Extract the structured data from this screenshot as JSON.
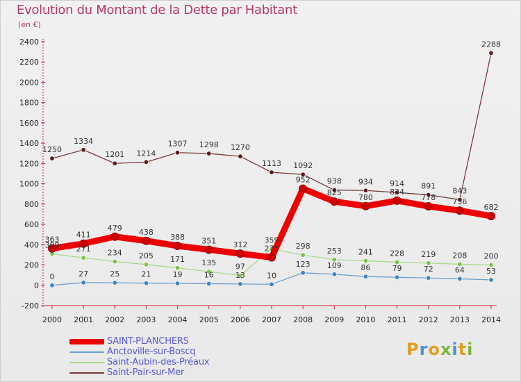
{
  "header": {
    "title": "Evolution du Montant de la Dette par Habitant",
    "subtitle": "(en €)"
  },
  "brand": "Proxiti",
  "chart_data": {
    "type": "line",
    "title": "Evolution du Montant de la Dette par Habitant",
    "subtitle": "(en €)",
    "xlabel": "",
    "ylabel": "",
    "ylim": [
      -200,
      2400
    ],
    "yticks": [
      -200,
      0,
      200,
      400,
      600,
      800,
      1000,
      1200,
      1400,
      1600,
      1800,
      2000,
      2200,
      2400
    ],
    "grid": false,
    "legend_position": "bottom-left",
    "categories": [
      "2000",
      "2001",
      "2002",
      "2003",
      "2004",
      "2005",
      "2006",
      "2007",
      "2008",
      "2009",
      "2010",
      "2011",
      "2012",
      "2013",
      "2014"
    ],
    "series": [
      {
        "name": "SAINT-PLANCHERS",
        "color": "#ee0000",
        "point_color": "#cc0000",
        "values": [
          363,
          411,
          479,
          438,
          388,
          351,
          312,
          275,
          952,
          825,
          780,
          834,
          778,
          736,
          682
        ]
      },
      {
        "name": "Anctoville-sur-Boscq",
        "color": "#6a9fcf",
        "point_color": "#3f83c0",
        "values": [
          0,
          27,
          25,
          21,
          19,
          16,
          13,
          10,
          123,
          109,
          86,
          79,
          72,
          64,
          53
        ]
      },
      {
        "name": "Saint-Aubin-des-Préaux",
        "color": "#a9d98b",
        "point_color": "#7cc24a",
        "values": [
          309,
          271,
          234,
          205,
          171,
          135,
          97,
          359,
          298,
          253,
          241,
          228,
          219,
          208,
          200
        ]
      },
      {
        "name": "Saint-Pair-sur-Mer",
        "color": "#7a3a3a",
        "point_color": "#5a1a1a",
        "values": [
          1250,
          1334,
          1201,
          1214,
          1307,
          1298,
          1270,
          1113,
          1092,
          938,
          934,
          914,
          891,
          843,
          2288
        ]
      }
    ]
  }
}
